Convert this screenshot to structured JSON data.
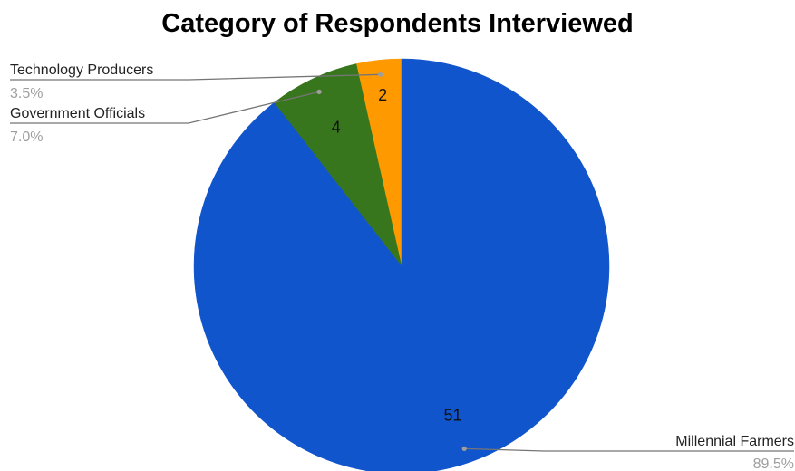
{
  "chart_data": {
    "type": "pie",
    "title": "Category of Respondents Interviewed",
    "slices": [
      {
        "label": "Technology Producers",
        "value": 2,
        "value_text": "2",
        "percent": "3.5%",
        "color": "#ff9900"
      },
      {
        "label": "Government Officials",
        "value": 4,
        "value_text": "4",
        "percent": "7.0%",
        "color": "#38761d"
      },
      {
        "label": "Millennial Farmers",
        "value": 51,
        "value_text": "51",
        "percent": "89.5%",
        "color": "#1155cc"
      }
    ],
    "start": "12 o'clock",
    "direction": "counterclockwise",
    "legend": "none"
  }
}
